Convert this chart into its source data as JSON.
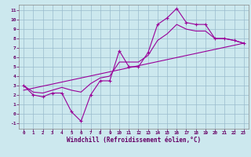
{
  "title": "",
  "xlabel": "Windchill (Refroidissement éolien,°C)",
  "bg_color": "#cce8ee",
  "line_color": "#990099",
  "grid_color": "#99bbcc",
  "xlim": [
    -0.5,
    23.5
  ],
  "ylim": [
    -1.6,
    11.6
  ],
  "xticks": [
    0,
    1,
    2,
    3,
    4,
    5,
    6,
    7,
    8,
    9,
    10,
    11,
    12,
    13,
    14,
    15,
    16,
    17,
    18,
    19,
    20,
    21,
    22,
    23
  ],
  "yticks": [
    -1,
    0,
    1,
    2,
    3,
    4,
    5,
    6,
    7,
    8,
    9,
    10,
    11
  ],
  "data_x": [
    0,
    1,
    2,
    3,
    4,
    5,
    6,
    7,
    8,
    9,
    10,
    11,
    12,
    13,
    14,
    15,
    16,
    17,
    18,
    19,
    20,
    21,
    22,
    23
  ],
  "data_y": [
    3.0,
    2.0,
    1.8,
    2.2,
    2.2,
    0.2,
    -0.8,
    2.0,
    3.5,
    3.5,
    6.7,
    5.0,
    5.0,
    6.5,
    9.5,
    10.2,
    11.2,
    9.7,
    9.5,
    9.5,
    8.0,
    8.0,
    7.8,
    7.5
  ],
  "smooth_x": [
    0,
    1,
    2,
    3,
    4,
    5,
    6,
    7,
    8,
    9,
    10,
    11,
    12,
    13,
    14,
    15,
    16,
    17,
    18,
    19,
    20,
    21,
    22,
    23
  ],
  "smooth_y": [
    3.0,
    2.3,
    2.2,
    2.5,
    2.8,
    2.5,
    2.3,
    3.2,
    3.8,
    4.0,
    5.5,
    5.5,
    5.5,
    6.2,
    7.8,
    8.5,
    9.5,
    9.0,
    8.8,
    8.8,
    8.0,
    8.0,
    7.8,
    7.5
  ],
  "line_x": [
    0,
    23
  ],
  "line_y": [
    2.5,
    7.5
  ],
  "spine_color": "#888888",
  "tick_color": "#660066",
  "xlabel_color": "#660066"
}
